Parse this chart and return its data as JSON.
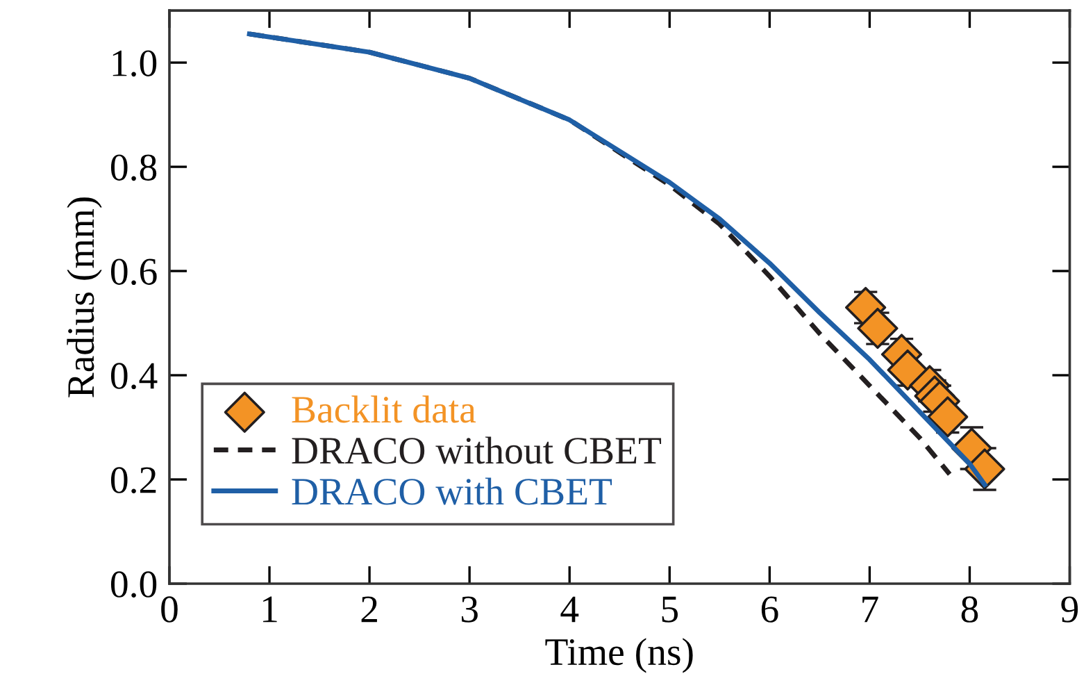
{
  "chart_data": {
    "type": "line",
    "xlabel": "Time (ns)",
    "ylabel": "Radius (mm)",
    "xlim": [
      0,
      9
    ],
    "ylim": [
      0,
      1.1
    ],
    "xticks": [
      0,
      1,
      2,
      3,
      4,
      5,
      6,
      7,
      8,
      9
    ],
    "yticks": [
      {
        "value": 0,
        "label": "0.0"
      },
      0.2,
      0.4,
      0.6,
      0.8,
      {
        "value": 1,
        "label": "1.0"
      }
    ],
    "grid": false,
    "legend": "bottom left",
    "series": [
      {
        "name": "Backlit data",
        "type": "scatter",
        "color": "#f39325",
        "marker": "diamond",
        "x": [
          6.96,
          7.08,
          7.32,
          7.38,
          7.6,
          7.65,
          7.7,
          7.78,
          8.02,
          8.15
        ],
        "values": [
          0.53,
          0.49,
          0.44,
          0.41,
          0.38,
          0.36,
          0.35,
          0.32,
          0.26,
          0.22
        ],
        "errors": [
          0.03,
          0.03,
          0.03,
          0.03,
          0.03,
          0.03,
          0.03,
          0.03,
          0.04,
          0.04
        ]
      },
      {
        "name": "DRACO without CBET",
        "color": "#231f20",
        "line_style": "dashed",
        "x": [
          0.8,
          2,
          3,
          4,
          5,
          5.5,
          6,
          6.5,
          7,
          7.5,
          7.8
        ],
        "values": [
          1.055,
          1.02,
          0.97,
          0.89,
          0.765,
          0.69,
          0.59,
          0.48,
          0.38,
          0.28,
          0.21
        ]
      },
      {
        "name": "DRACO with CBET",
        "color": "#1f5fa6",
        "line_style": "solid",
        "x": [
          0.8,
          2,
          3,
          4,
          5,
          5.5,
          6,
          6.5,
          7,
          7.5,
          8,
          8.15
        ],
        "values": [
          1.055,
          1.02,
          0.97,
          0.89,
          0.77,
          0.7,
          0.615,
          0.52,
          0.43,
          0.33,
          0.23,
          0.19
        ]
      }
    ]
  }
}
